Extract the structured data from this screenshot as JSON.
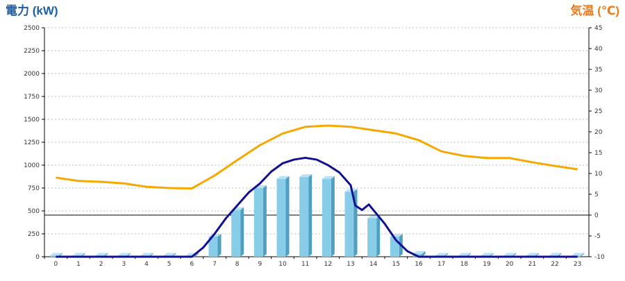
{
  "chart_data": {
    "type": "bar+line",
    "left_axis_title": "電力 (kW)",
    "right_axis_title": "気温 (℃)",
    "colors": {
      "left_axis_title": "#1a5fa8",
      "right_axis_title": "#f07a1a",
      "bar_front": "#87cdea",
      "bar_side": "#4f9fc0",
      "bar_top": "#b8e3f4",
      "power_line": "#101090",
      "temperature_line": "#f5a800",
      "grid": "#bbbbbb",
      "zero_line": "#000000"
    },
    "categories": [
      "0",
      "1",
      "2",
      "3",
      "4",
      "5",
      "6",
      "7",
      "8",
      "9",
      "10",
      "11",
      "12",
      "13",
      "14",
      "15",
      "16",
      "17",
      "18",
      "19",
      "20",
      "21",
      "22",
      "23"
    ],
    "left_axis": {
      "min": 0,
      "max": 2500,
      "step": 250,
      "tick_labels": [
        "0",
        "250",
        "500",
        "750",
        "1000",
        "1250",
        "1500",
        "1750",
        "2000",
        "2250",
        "2500"
      ]
    },
    "right_axis": {
      "min": -10,
      "max": 45,
      "step": 5,
      "tick_labels": [
        "-10",
        "-5",
        "0",
        "5",
        "10",
        "15",
        "20",
        "25",
        "30",
        "35",
        "40",
        "45"
      ]
    },
    "grid": true,
    "series": [
      {
        "kind": "bar",
        "axis": "left",
        "values": [
          0,
          0,
          0,
          0,
          0,
          0,
          0,
          220,
          510,
          750,
          850,
          870,
          850,
          710,
          420,
          220,
          30,
          0,
          0,
          0,
          0,
          0,
          0,
          0
        ]
      },
      {
        "kind": "line",
        "axis": "left",
        "points": [
          [
            0,
            0
          ],
          [
            1,
            0
          ],
          [
            2,
            0
          ],
          [
            3,
            0
          ],
          [
            4,
            0
          ],
          [
            5,
            0
          ],
          [
            6,
            0
          ],
          [
            6.5,
            100
          ],
          [
            7,
            250
          ],
          [
            7.5,
            420
          ],
          [
            8,
            560
          ],
          [
            8.5,
            700
          ],
          [
            9,
            800
          ],
          [
            9.5,
            930
          ],
          [
            10,
            1020
          ],
          [
            10.5,
            1060
          ],
          [
            11,
            1080
          ],
          [
            11.5,
            1060
          ],
          [
            12,
            1000
          ],
          [
            12.5,
            920
          ],
          [
            13,
            780
          ],
          [
            13.2,
            560
          ],
          [
            13.5,
            510
          ],
          [
            13.8,
            570
          ],
          [
            14,
            510
          ],
          [
            14.5,
            360
          ],
          [
            15,
            180
          ],
          [
            15.5,
            60
          ],
          [
            16,
            0
          ],
          [
            17,
            0
          ],
          [
            18,
            0
          ],
          [
            19,
            0
          ],
          [
            20,
            0
          ],
          [
            21,
            0
          ],
          [
            22,
            0
          ],
          [
            23,
            0
          ]
        ]
      },
      {
        "kind": "line",
        "axis": "right",
        "values": [
          9,
          8.2,
          8,
          7.6,
          6.8,
          6.5,
          6.4,
          9.5,
          13.2,
          16.8,
          19.6,
          21.2,
          21.5,
          21.2,
          20.4,
          19.6,
          18,
          15.3,
          14.2,
          13.7,
          13.7,
          12.7,
          11.8,
          11
        ]
      }
    ]
  }
}
